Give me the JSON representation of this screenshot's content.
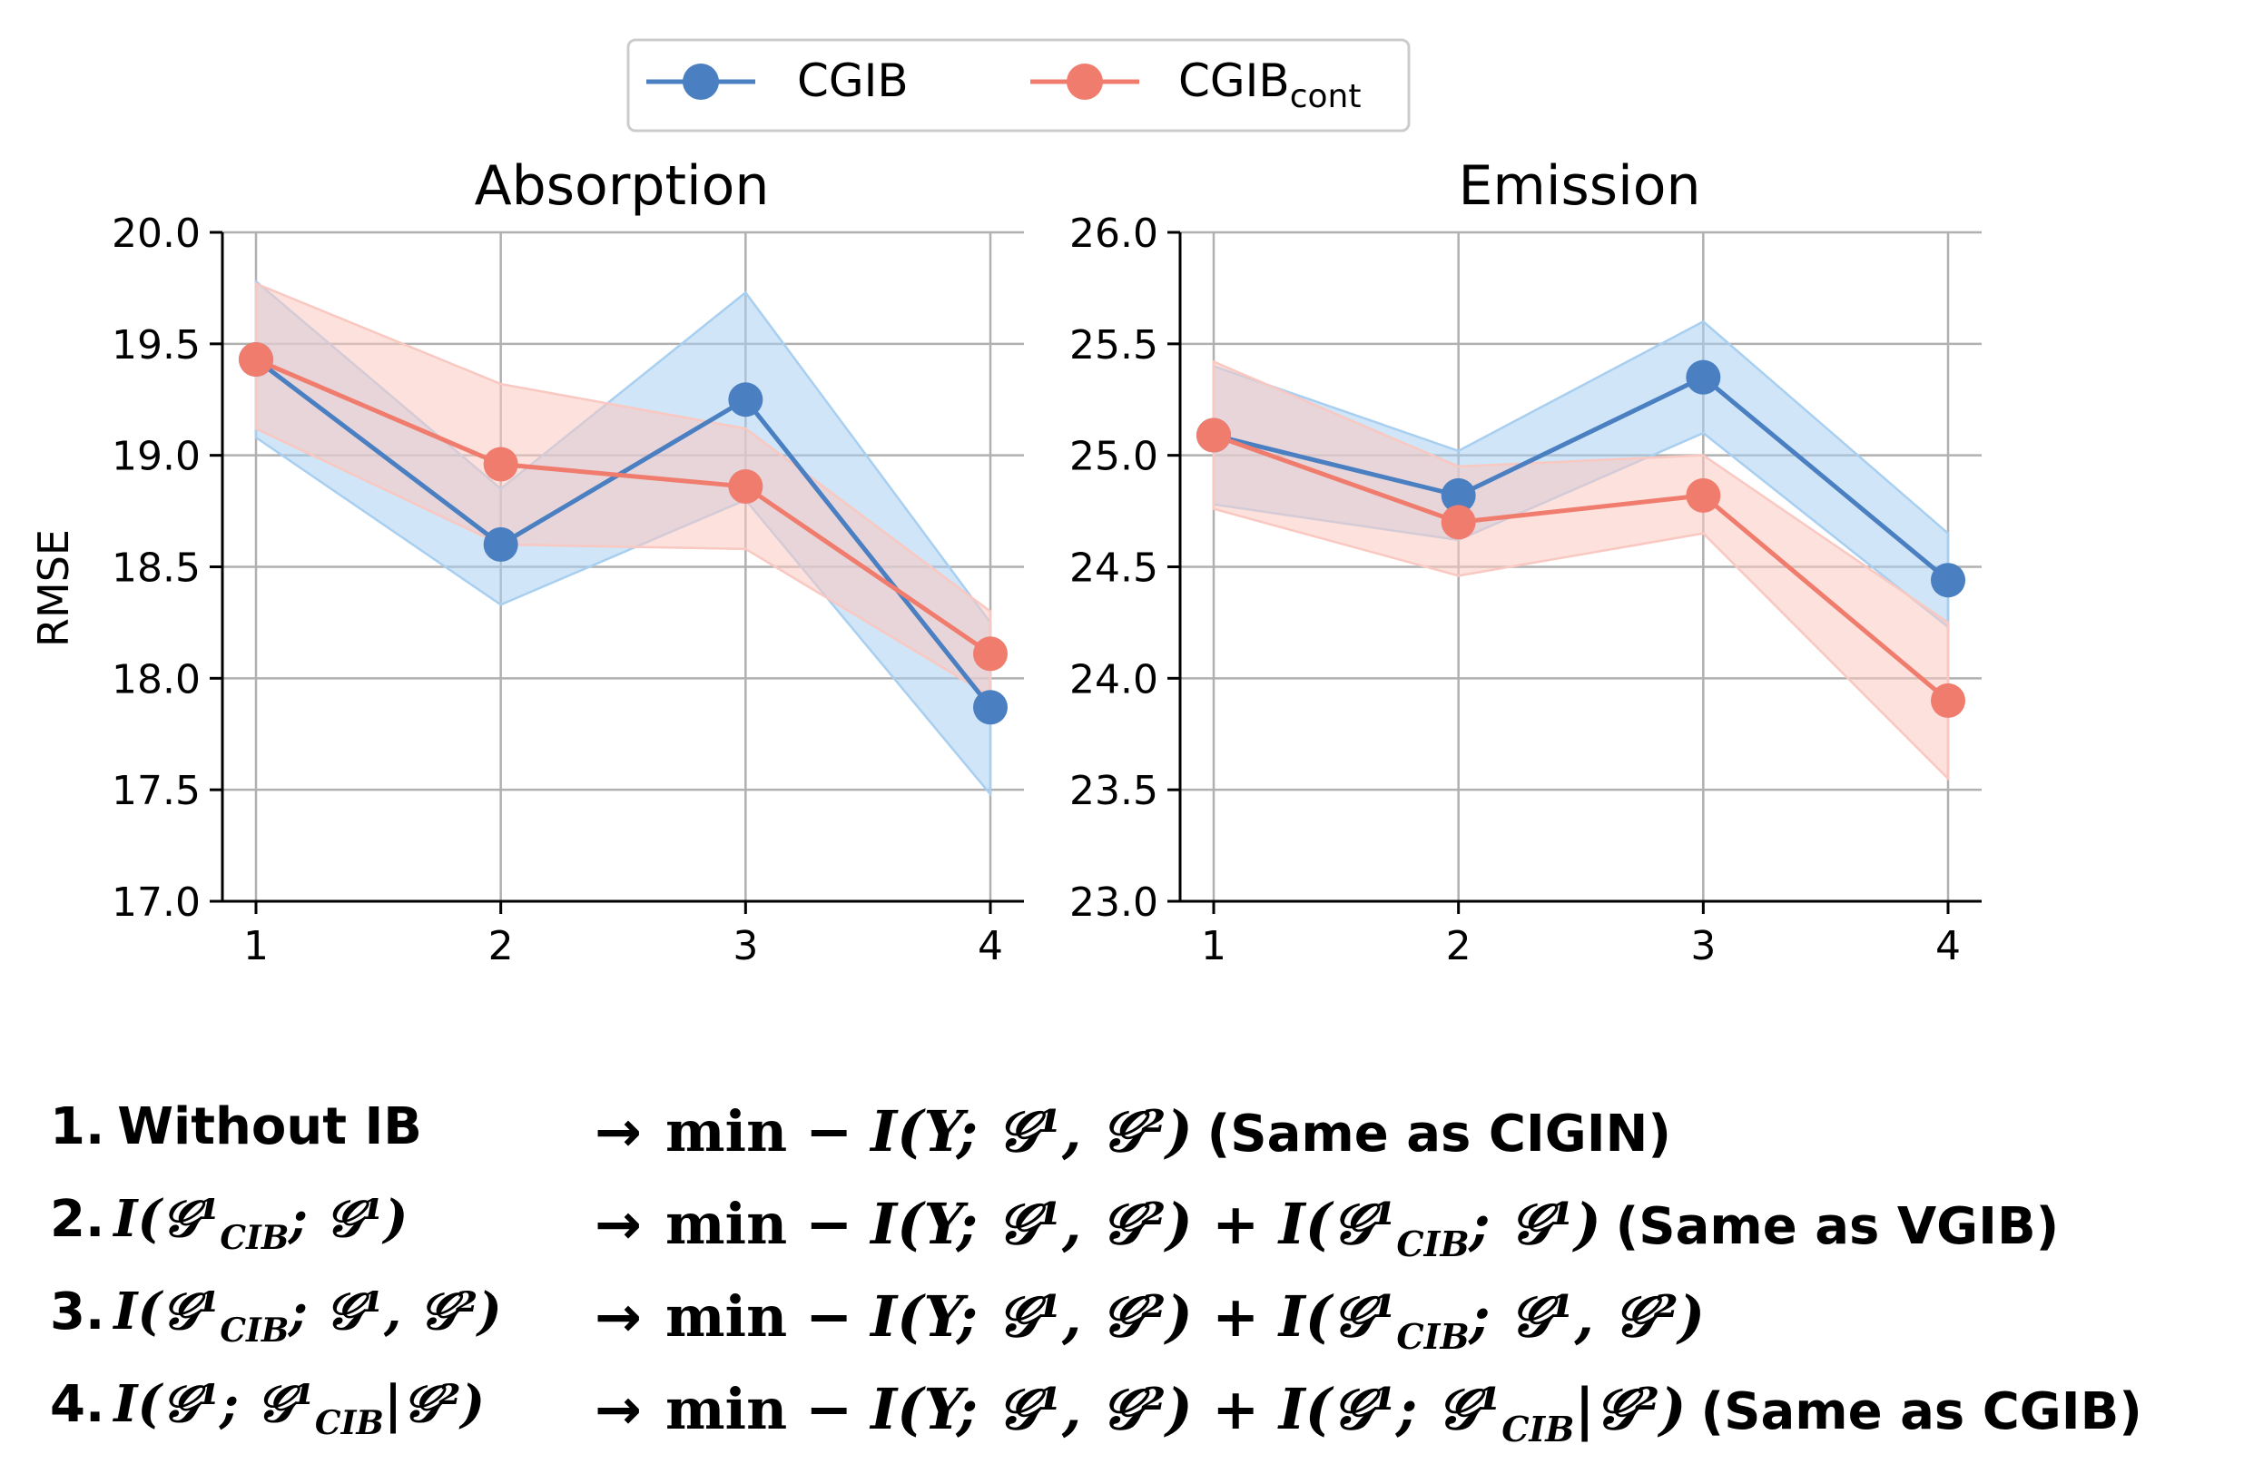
{
  "chart_data": [
    {
      "type": "line",
      "title": "Absorption",
      "xlabel": "",
      "ylabel": "RMSE",
      "x": [
        1,
        2,
        3,
        4
      ],
      "ylim": [
        17.0,
        20.0
      ],
      "yticks": [
        "17.0",
        "17.5",
        "18.0",
        "18.5",
        "19.0",
        "19.5",
        "20.0"
      ],
      "xticks": [
        "1",
        "2",
        "3",
        "4"
      ],
      "grid": true,
      "series": [
        {
          "name": "CGIB",
          "values": [
            19.43,
            18.6,
            19.25,
            17.87
          ],
          "lower": [
            19.08,
            18.33,
            18.8,
            17.48
          ],
          "upper": [
            19.78,
            18.85,
            19.73,
            18.25
          ]
        },
        {
          "name": "CGIB_cont",
          "values": [
            19.43,
            18.96,
            18.86,
            18.11
          ],
          "lower": [
            19.12,
            18.6,
            18.58,
            17.92
          ],
          "upper": [
            19.77,
            19.32,
            19.12,
            18.3
          ]
        }
      ]
    },
    {
      "type": "line",
      "title": "Emission",
      "xlabel": "",
      "ylabel": "",
      "x": [
        1,
        2,
        3,
        4
      ],
      "ylim": [
        23.0,
        26.0
      ],
      "yticks": [
        "23.0",
        "23.5",
        "24.0",
        "24.5",
        "25.0",
        "25.5",
        "26.0"
      ],
      "xticks": [
        "1",
        "2",
        "3",
        "4"
      ],
      "grid": true,
      "series": [
        {
          "name": "CGIB",
          "values": [
            25.09,
            24.82,
            25.35,
            24.44
          ],
          "lower": [
            24.78,
            24.62,
            25.1,
            24.23
          ],
          "upper": [
            25.4,
            25.02,
            25.6,
            24.65
          ]
        },
        {
          "name": "CGIB_cont",
          "values": [
            25.09,
            24.7,
            24.82,
            23.9
          ],
          "lower": [
            24.76,
            24.46,
            24.65,
            23.55
          ],
          "upper": [
            25.42,
            24.95,
            25.0,
            24.25
          ]
        }
      ]
    }
  ],
  "legend": {
    "items": [
      {
        "label": "CGIB",
        "sub": ""
      },
      {
        "label": "CGIB",
        "sub": "cont"
      }
    ],
    "placement": "top-center"
  },
  "colors": {
    "CGIB": "#4a7fc1",
    "CGIB_band": "#a9cff0",
    "CGIB_cont": "#f07c6e",
    "CGIB_cont_band": "#f9c8c1",
    "grid": "#b0b0b0",
    "axis": "#000000"
  },
  "annotations": [
    {
      "number": "1.",
      "label": "Without IB",
      "objective": "min − I(Y; 𝒢¹, 𝒢²)",
      "note": "(Same as CIGIN)"
    },
    {
      "number": "2.",
      "label": "I(𝒢¹_CIB; 𝒢¹)",
      "objective": "min − I(Y; 𝒢¹, 𝒢²) + I(𝒢¹_CIB; 𝒢¹)",
      "note": "(Same as VGIB)"
    },
    {
      "number": "3.",
      "label": "I(𝒢¹_CIB; 𝒢¹, 𝒢²)",
      "objective": "min − I(Y; 𝒢¹, 𝒢²) + I(𝒢¹_CIB; 𝒢¹, 𝒢²)",
      "note": ""
    },
    {
      "number": "4.",
      "label": "I(𝒢¹; 𝒢¹_CIB|𝒢²)",
      "objective": "min − I(Y; 𝒢¹, 𝒢²) + I(𝒢¹; 𝒢¹_CIB|𝒢²)",
      "note": "(Same as CGIB)"
    }
  ]
}
